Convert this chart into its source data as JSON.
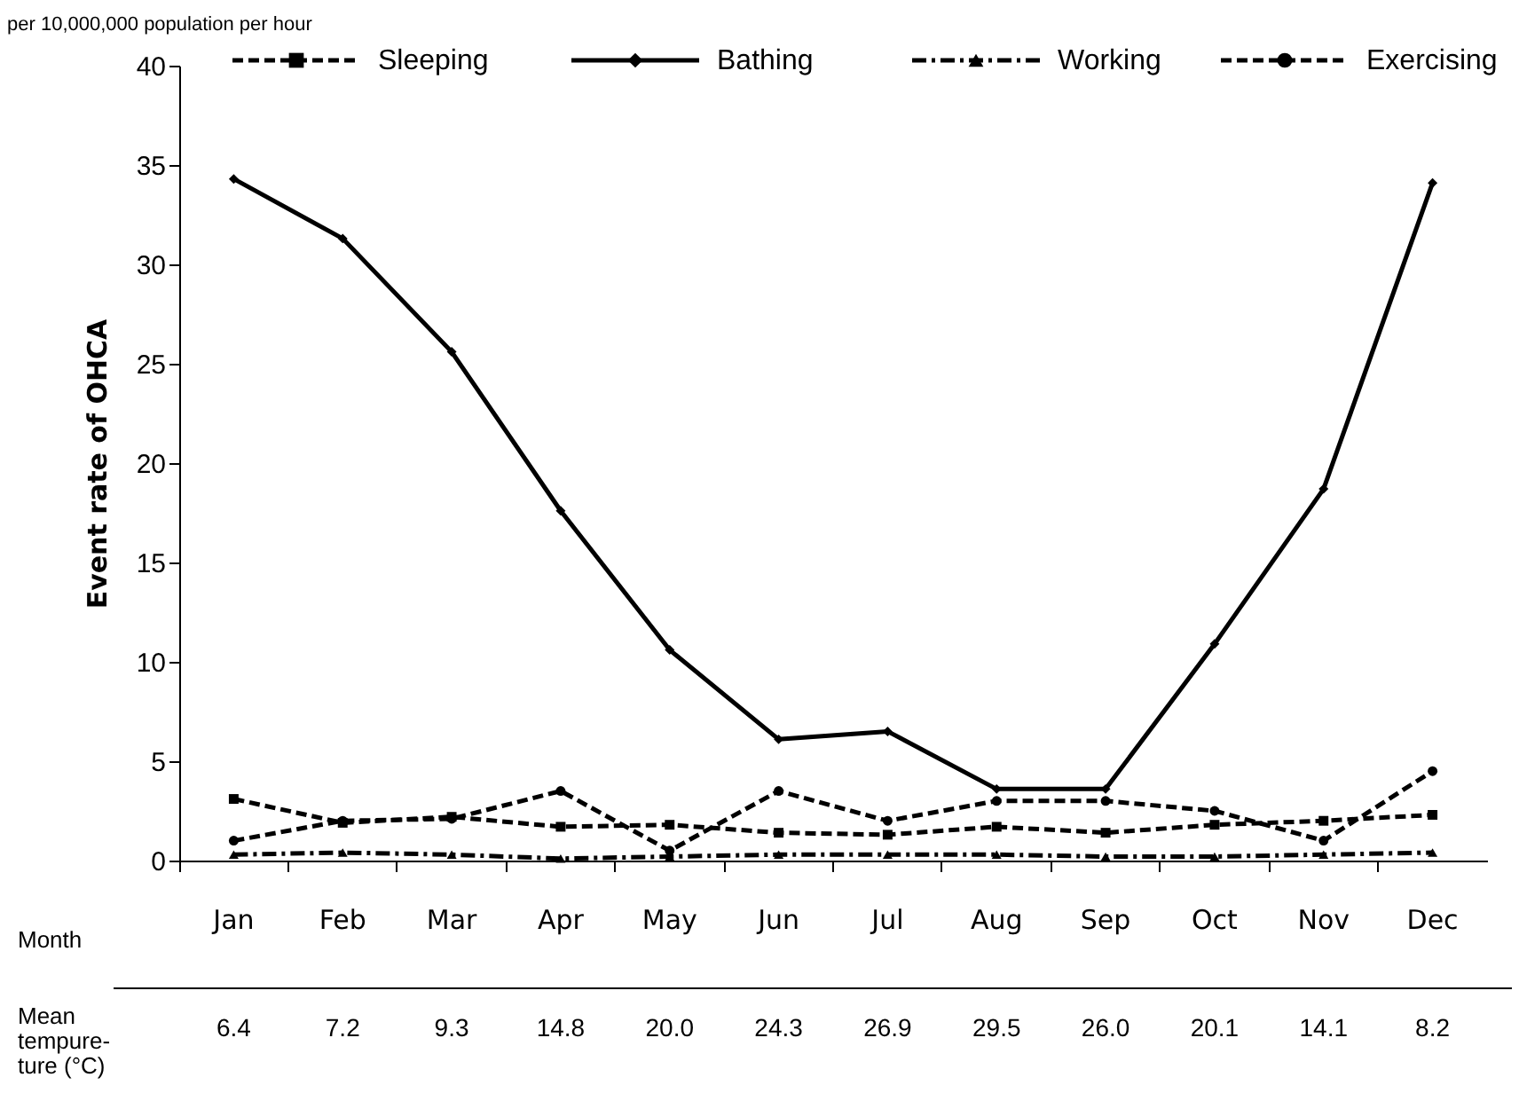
{
  "chart_data": {
    "type": "line",
    "subtitle": "per 10,000,000 population per hour",
    "ylabel": "Event rate of OHCA",
    "categories": [
      "Jan",
      "Feb",
      "Mar",
      "Apr",
      "May",
      "Jun",
      "Jul",
      "Aug",
      "Sep",
      "Oct",
      "Nov",
      "Dec"
    ],
    "series": [
      {
        "name": "Sleeping",
        "color": "#000000",
        "marker": "square",
        "line_style": "dashed",
        "values": [
          3.1,
          1.9,
          2.2,
          1.7,
          1.8,
          1.4,
          1.3,
          1.7,
          1.4,
          1.8,
          2.0,
          2.3
        ]
      },
      {
        "name": "Bathing",
        "color": "#000000",
        "marker": "diamond",
        "line_style": "solid",
        "values": [
          34.3,
          31.3,
          25.6,
          17.6,
          10.6,
          6.1,
          6.5,
          3.6,
          3.6,
          10.9,
          18.7,
          34.1
        ]
      },
      {
        "name": "Working",
        "color": "#000000",
        "marker": "triangle",
        "line_style": "dotted",
        "values": [
          0.3,
          0.4,
          0.3,
          0.1,
          0.2,
          0.3,
          0.3,
          0.3,
          0.2,
          0.2,
          0.3,
          0.4
        ]
      },
      {
        "name": "Exercising",
        "color": "#000000",
        "marker": "circle",
        "line_style": "dashed",
        "values": [
          1.0,
          2.0,
          2.1,
          3.5,
          0.5,
          3.5,
          2.0,
          3.0,
          3.0,
          2.5,
          1.0,
          4.5
        ]
      }
    ],
    "ylim": [
      0,
      40
    ],
    "yticks": [
      0,
      5,
      10,
      15,
      20,
      25,
      30,
      35,
      40
    ],
    "grid": false,
    "legend": "top",
    "annotations": [
      "Month",
      "Mean tempure-ture (°C)",
      "6.4",
      "7.2",
      "9.3",
      "14.8",
      "20.0",
      "24.3",
      "26.9",
      "29.5",
      "26.0",
      "20.1",
      "14.1",
      "8.2"
    ]
  }
}
